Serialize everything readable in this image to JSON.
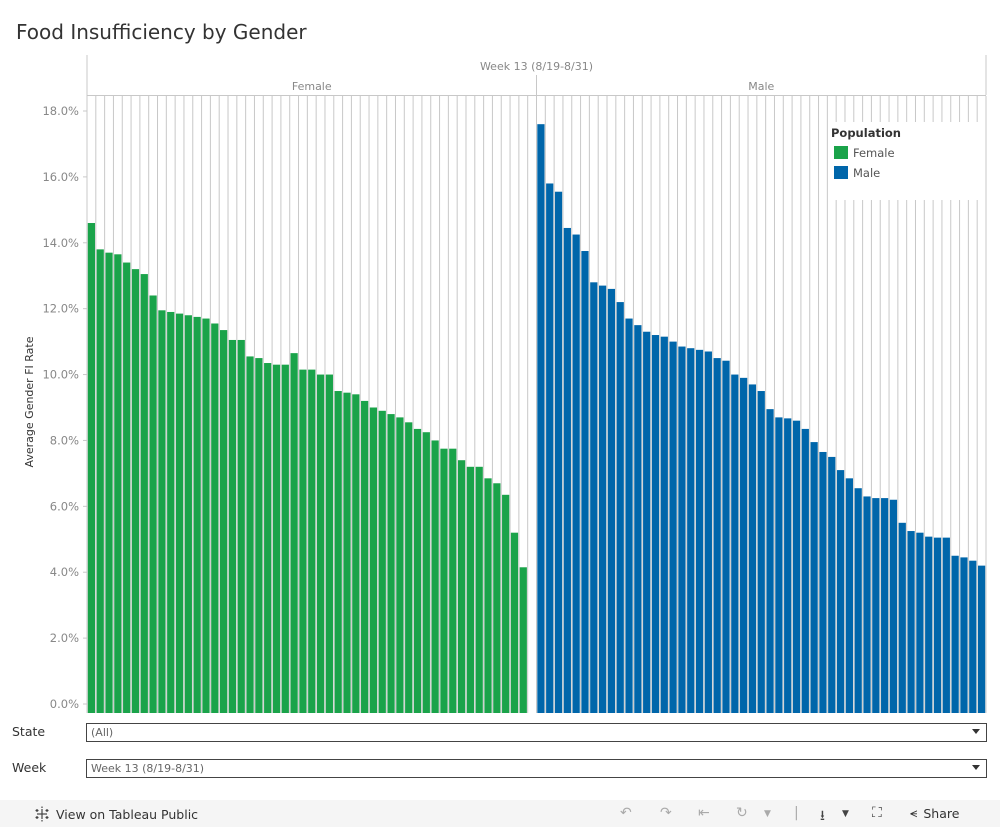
{
  "title": "Food Insufficiency by Gender",
  "colors": {
    "female": "#1aa34a",
    "male": "#0066aa",
    "grid": "#c8c8c8",
    "axis_text": "#888888"
  },
  "chart_data": {
    "type": "bar",
    "title": "Food Insufficiency by Gender",
    "column_header": "Week 13 (8/19-8/31)",
    "panes": [
      "Female",
      "Male"
    ],
    "ylabel": "Average Gender FI Rate",
    "xlabel": "",
    "ylim": [
      0,
      18.5
    ],
    "yticks": [
      0,
      2,
      4,
      6,
      8,
      10,
      12,
      14,
      16,
      18
    ],
    "ytick_labels": [
      "0.0%",
      "2.0%",
      "4.0%",
      "6.0%",
      "8.0%",
      "10.0%",
      "12.0%",
      "14.0%",
      "16.0%",
      "18.0%"
    ],
    "grid": true,
    "legend": {
      "title": "Population",
      "placement": "top-right",
      "entries": [
        "Female",
        "Male"
      ]
    },
    "series": [
      {
        "name": "Female",
        "values": [
          14.6,
          13.8,
          13.7,
          13.65,
          13.4,
          13.2,
          13.05,
          12.4,
          11.95,
          11.9,
          11.85,
          11.8,
          11.75,
          11.7,
          11.55,
          11.35,
          11.05,
          11.05,
          10.55,
          10.5,
          10.35,
          10.3,
          10.3,
          10.65,
          10.15,
          10.15,
          10.0,
          10.0,
          9.5,
          9.45,
          9.4,
          9.2,
          9.0,
          8.9,
          8.8,
          8.7,
          8.55,
          8.35,
          8.25,
          8.0,
          7.75,
          7.75,
          7.4,
          7.2,
          7.2,
          6.85,
          6.7,
          6.35,
          5.2,
          4.15
        ]
      },
      {
        "name": "Male",
        "values": [
          17.6,
          15.8,
          15.55,
          14.45,
          14.25,
          13.75,
          12.8,
          12.7,
          12.6,
          12.2,
          11.7,
          11.5,
          11.3,
          11.2,
          11.15,
          11.0,
          10.85,
          10.8,
          10.75,
          10.7,
          10.5,
          10.42,
          10.0,
          9.9,
          9.7,
          9.5,
          8.95,
          8.7,
          8.67,
          8.6,
          8.35,
          7.95,
          7.65,
          7.5,
          7.1,
          6.85,
          6.55,
          6.3,
          6.25,
          6.25,
          6.2,
          5.5,
          5.25,
          5.2,
          5.08,
          5.05,
          5.05,
          4.5,
          4.45,
          4.35,
          4.2
        ]
      }
    ]
  },
  "filters": [
    {
      "label": "State",
      "value": "(All)"
    },
    {
      "label": "Week",
      "value": "Week 13 (8/19-8/31)"
    }
  ],
  "footer": {
    "view_label": "View on Tableau Public",
    "share_label": "Share"
  }
}
